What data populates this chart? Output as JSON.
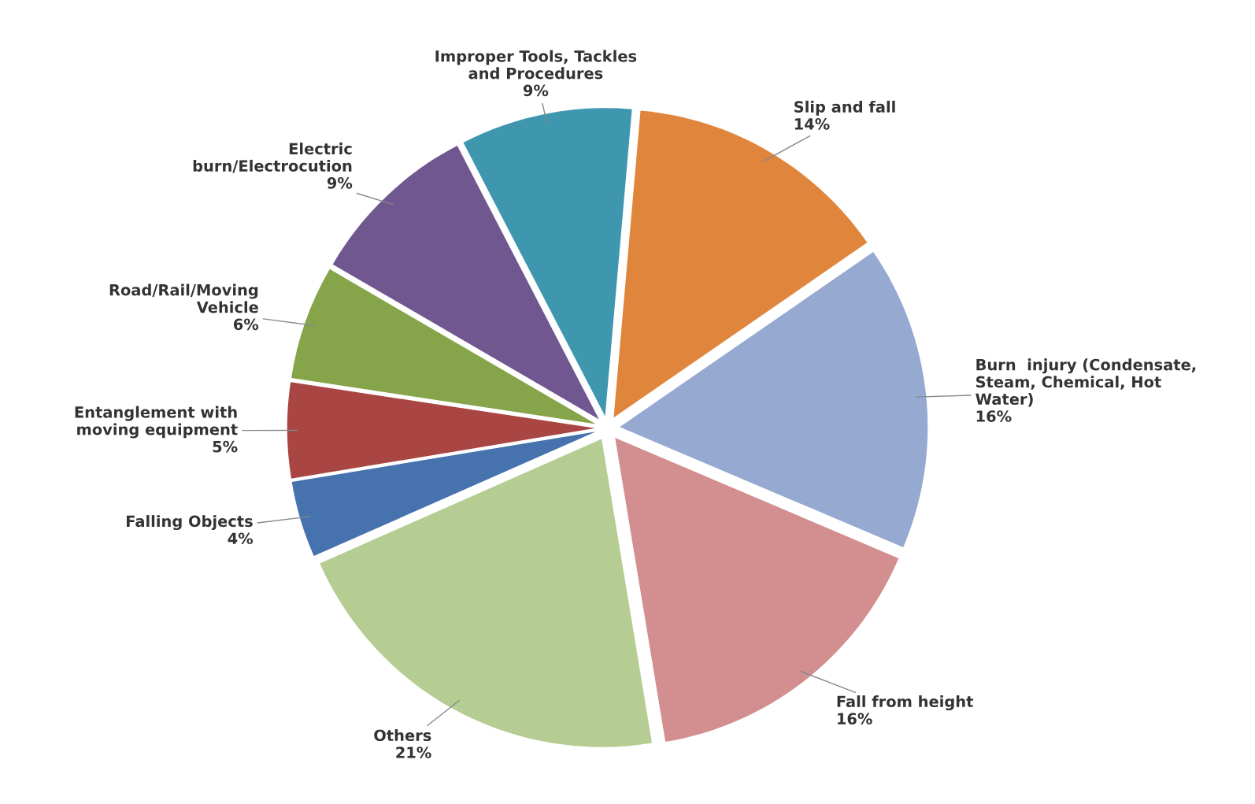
{
  "chart_data": {
    "type": "pie",
    "categories": [
      "Slip and fall",
      "Burn  injury (Condensate,\nSteam, Chemical, Hot\nWater)",
      "Fall from height",
      "Others",
      "Falling Objects",
      "Entanglement with\nmoving equipment",
      "Road/Rail/Moving\nVehicle",
      "Electric\nburn/Electrocution",
      "Improper Tools, Tackles\nand Procedures"
    ],
    "values": [
      14,
      16,
      16,
      21,
      4,
      5,
      6,
      9,
      9
    ],
    "value_labels": [
      "14%",
      "16%",
      "16%",
      "21%",
      "4%",
      "5%",
      "6%",
      "9%",
      "9%"
    ],
    "colors": [
      "#e0853c",
      "#95a9d1",
      "#d38f8f",
      "#b5cd92",
      "#4672ad",
      "#a94543",
      "#86a44a",
      "#71578f",
      "#3e97ae"
    ]
  }
}
